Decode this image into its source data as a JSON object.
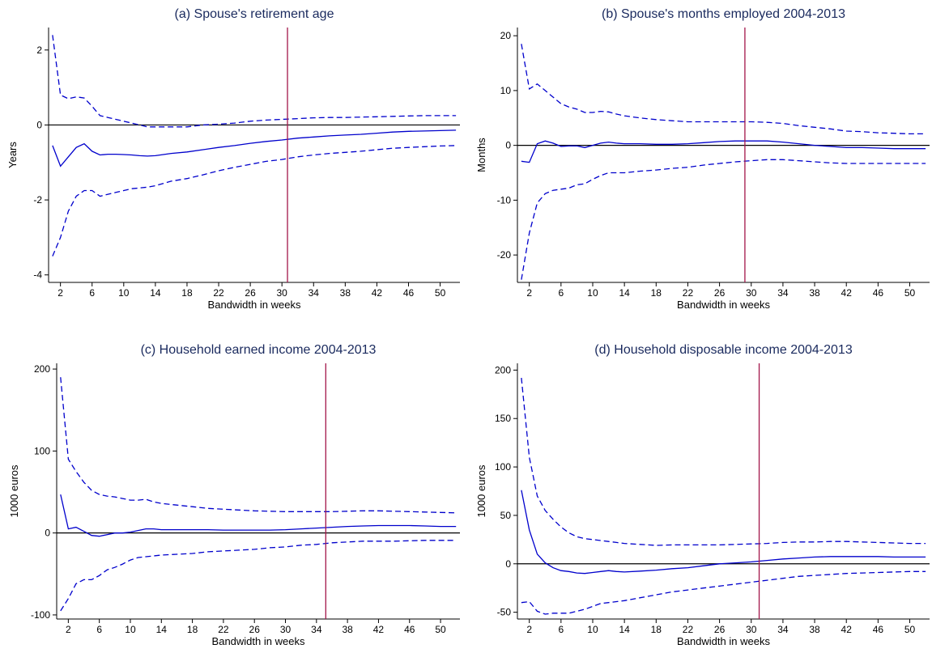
{
  "colors": {
    "series": "#0000cc",
    "bandwidth_marker": "#a3164a",
    "zero_line": "#000000",
    "title": "#1a2a5e"
  },
  "chart_data": [
    {
      "type": "line",
      "title": "(a) Spouse's retirement age",
      "xlabel": "Bandwidth in weeks",
      "ylabel": "Years",
      "xlim": [
        0.5,
        52.5
      ],
      "ylim": [
        -4.2,
        2.6
      ],
      "xticks": [
        2,
        6,
        10,
        14,
        18,
        22,
        26,
        30,
        34,
        38,
        42,
        46,
        50
      ],
      "yticks": [
        -4,
        -2,
        0,
        2
      ],
      "ytick_labels": [
        "-4",
        "-2",
        "0",
        "2"
      ],
      "zero_line": 0,
      "chosen_bandwidth": 30.7,
      "x": [
        1,
        2,
        3,
        4,
        5,
        6,
        7,
        8,
        9,
        10,
        11,
        12,
        13,
        14,
        16,
        18,
        20,
        22,
        24,
        26,
        28,
        30,
        32,
        34,
        36,
        38,
        40,
        42,
        44,
        46,
        48,
        50,
        52
      ],
      "series": [
        {
          "style": "dashed",
          "values": [
            2.4,
            0.8,
            0.7,
            0.75,
            0.72,
            0.5,
            0.25,
            0.2,
            0.15,
            0.1,
            0.05,
            0.0,
            -0.05,
            -0.05,
            -0.05,
            -0.05,
            0.0,
            0.02,
            0.05,
            0.1,
            0.13,
            0.15,
            0.17,
            0.19,
            0.2,
            0.2,
            0.21,
            0.22,
            0.23,
            0.24,
            0.25,
            0.25,
            0.25
          ]
        },
        {
          "style": "solid",
          "values": [
            -0.55,
            -1.1,
            -0.85,
            -0.6,
            -0.5,
            -0.7,
            -0.8,
            -0.78,
            -0.78,
            -0.79,
            -0.8,
            -0.82,
            -0.83,
            -0.82,
            -0.76,
            -0.72,
            -0.66,
            -0.6,
            -0.55,
            -0.49,
            -0.44,
            -0.4,
            -0.35,
            -0.32,
            -0.29,
            -0.27,
            -0.25,
            -0.22,
            -0.19,
            -0.17,
            -0.16,
            -0.15,
            -0.14
          ]
        },
        {
          "style": "dashed",
          "values": [
            -3.5,
            -3.0,
            -2.3,
            -1.9,
            -1.75,
            -1.75,
            -1.9,
            -1.85,
            -1.8,
            -1.75,
            -1.7,
            -1.68,
            -1.66,
            -1.62,
            -1.5,
            -1.43,
            -1.33,
            -1.22,
            -1.13,
            -1.05,
            -0.97,
            -0.92,
            -0.85,
            -0.8,
            -0.76,
            -0.73,
            -0.7,
            -0.66,
            -0.62,
            -0.6,
            -0.58,
            -0.56,
            -0.55
          ]
        }
      ]
    },
    {
      "type": "line",
      "title": "(b) Spouse's months employed 2004-2013",
      "xlabel": "Bandwidth in weeks",
      "ylabel": "Months",
      "xlim": [
        0.5,
        52.5
      ],
      "ylim": [
        -25,
        21.5
      ],
      "xticks": [
        2,
        6,
        10,
        14,
        18,
        22,
        26,
        30,
        34,
        38,
        42,
        46,
        50
      ],
      "yticks": [
        -20,
        -10,
        0,
        10,
        20
      ],
      "ytick_labels": [
        "-20",
        "-10",
        "0",
        "10",
        "20"
      ],
      "zero_line": 0,
      "chosen_bandwidth": 29.2,
      "x": [
        1,
        2,
        3,
        4,
        5,
        6,
        7,
        8,
        9,
        10,
        11,
        12,
        13,
        14,
        16,
        18,
        20,
        22,
        24,
        26,
        28,
        30,
        32,
        34,
        36,
        38,
        40,
        42,
        44,
        46,
        48,
        50,
        52
      ],
      "series": [
        {
          "style": "dashed",
          "values": [
            18.5,
            10.3,
            11.2,
            10.0,
            8.8,
            7.6,
            7.0,
            6.6,
            6.0,
            6.0,
            6.2,
            6.1,
            5.7,
            5.4,
            5.0,
            4.7,
            4.5,
            4.3,
            4.3,
            4.3,
            4.3,
            4.3,
            4.2,
            4.0,
            3.6,
            3.3,
            3.0,
            2.6,
            2.5,
            2.3,
            2.2,
            2.1,
            2.1
          ]
        },
        {
          "style": "solid",
          "values": [
            -2.9,
            -3.1,
            0.3,
            0.8,
            0.4,
            -0.2,
            -0.1,
            -0.1,
            -0.4,
            0.0,
            0.4,
            0.6,
            0.4,
            0.3,
            0.3,
            0.2,
            0.2,
            0.3,
            0.5,
            0.7,
            0.8,
            0.8,
            0.8,
            0.6,
            0.3,
            0.0,
            -0.2,
            -0.4,
            -0.4,
            -0.5,
            -0.6,
            -0.6,
            -0.6
          ]
        },
        {
          "style": "dashed",
          "values": [
            -24.5,
            -16.0,
            -10.5,
            -8.8,
            -8.2,
            -8.0,
            -7.8,
            -7.2,
            -7.0,
            -6.2,
            -5.5,
            -5.0,
            -5.0,
            -5.0,
            -4.7,
            -4.5,
            -4.2,
            -4.0,
            -3.6,
            -3.3,
            -3.0,
            -2.8,
            -2.6,
            -2.6,
            -2.8,
            -3.0,
            -3.2,
            -3.3,
            -3.3,
            -3.3,
            -3.3,
            -3.3,
            -3.3
          ]
        }
      ]
    },
    {
      "type": "line",
      "title": "(c) Household earned income 2004-2013",
      "xlabel": "Bandwidth in weeks",
      "ylabel": "1000 euros",
      "xlim": [
        0.5,
        52.5
      ],
      "ylim": [
        -105,
        207
      ],
      "xticks": [
        2,
        6,
        10,
        14,
        18,
        22,
        26,
        30,
        34,
        38,
        42,
        46,
        50
      ],
      "yticks": [
        -100,
        0,
        100,
        200
      ],
      "ytick_labels": [
        "-100",
        "0",
        "100",
        "200"
      ],
      "zero_line": 0,
      "chosen_bandwidth": 35.2,
      "x": [
        1,
        2,
        3,
        4,
        5,
        6,
        7,
        8,
        9,
        10,
        11,
        12,
        13,
        14,
        16,
        18,
        20,
        22,
        24,
        26,
        28,
        30,
        32,
        34,
        36,
        38,
        40,
        42,
        44,
        46,
        48,
        50,
        52
      ],
      "series": [
        {
          "style": "dashed",
          "values": [
            190,
            90,
            75,
            62,
            52,
            47,
            45,
            44,
            42,
            40,
            40,
            41,
            38,
            36,
            34,
            32,
            30,
            29,
            28,
            27,
            26.5,
            26,
            26,
            26,
            26,
            26.5,
            27,
            27,
            26.5,
            26,
            25.5,
            25,
            24.5
          ]
        },
        {
          "style": "solid",
          "values": [
            47,
            5,
            7,
            2,
            -3,
            -4,
            -2,
            0,
            0,
            1,
            3,
            5,
            5,
            4,
            4,
            4,
            4,
            3.5,
            3.5,
            3.5,
            3.5,
            4,
            5,
            6,
            7,
            8,
            8.5,
            9,
            9,
            9,
            8.5,
            8,
            8
          ]
        },
        {
          "style": "dashed",
          "values": [
            -95,
            -80,
            -62,
            -57,
            -57,
            -52,
            -45,
            -42,
            -38,
            -33,
            -30,
            -29,
            -28,
            -27,
            -26,
            -25,
            -23,
            -22,
            -21,
            -20,
            -18,
            -17,
            -15,
            -14,
            -12,
            -11,
            -10,
            -10,
            -10,
            -9.5,
            -9,
            -9,
            -9
          ]
        }
      ]
    },
    {
      "type": "line",
      "title": "(d) Household disposable income 2004-2013",
      "xlabel": "Bandwidth in weeks",
      "ylabel": "1000 euros",
      "xlim": [
        0.5,
        52.5
      ],
      "ylim": [
        -57,
        207
      ],
      "xticks": [
        2,
        6,
        10,
        14,
        18,
        22,
        26,
        30,
        34,
        38,
        42,
        46,
        50
      ],
      "yticks": [
        -50,
        0,
        50,
        100,
        150,
        200
      ],
      "ytick_labels": [
        "-50",
        "0",
        "50",
        "100",
        "150",
        "200"
      ],
      "zero_line": 0,
      "chosen_bandwidth": 31.0,
      "x": [
        1,
        2,
        3,
        4,
        5,
        6,
        7,
        8,
        9,
        10,
        11,
        12,
        13,
        14,
        16,
        18,
        20,
        22,
        24,
        26,
        28,
        30,
        32,
        34,
        36,
        38,
        40,
        42,
        44,
        46,
        48,
        50,
        52
      ],
      "series": [
        {
          "style": "dashed",
          "values": [
            192,
            110,
            70,
            55,
            46,
            38,
            32,
            28,
            26,
            25,
            24,
            23,
            22,
            21,
            20,
            19,
            19.5,
            19.5,
            19.5,
            19.5,
            20,
            20.5,
            21,
            22,
            22.5,
            22.5,
            23,
            23,
            22.5,
            22,
            21.5,
            21,
            21
          ]
        },
        {
          "style": "solid",
          "values": [
            76,
            35,
            10,
            1,
            -4,
            -7,
            -8,
            -9.5,
            -10,
            -9,
            -8,
            -7,
            -8,
            -8.5,
            -7.5,
            -6.5,
            -5,
            -4,
            -2,
            0,
            1,
            2,
            3.5,
            5,
            6,
            7,
            7.5,
            7.5,
            7.5,
            7.5,
            7,
            7,
            7
          ]
        },
        {
          "style": "dashed",
          "values": [
            -40,
            -39,
            -49,
            -52,
            -51,
            -51,
            -51,
            -49,
            -47,
            -44,
            -41,
            -40,
            -39,
            -38,
            -35,
            -32,
            -29,
            -27,
            -25,
            -23,
            -21,
            -19,
            -17,
            -15,
            -13,
            -12,
            -11,
            -10,
            -9.5,
            -9,
            -8.5,
            -8,
            -8
          ]
        }
      ]
    }
  ]
}
